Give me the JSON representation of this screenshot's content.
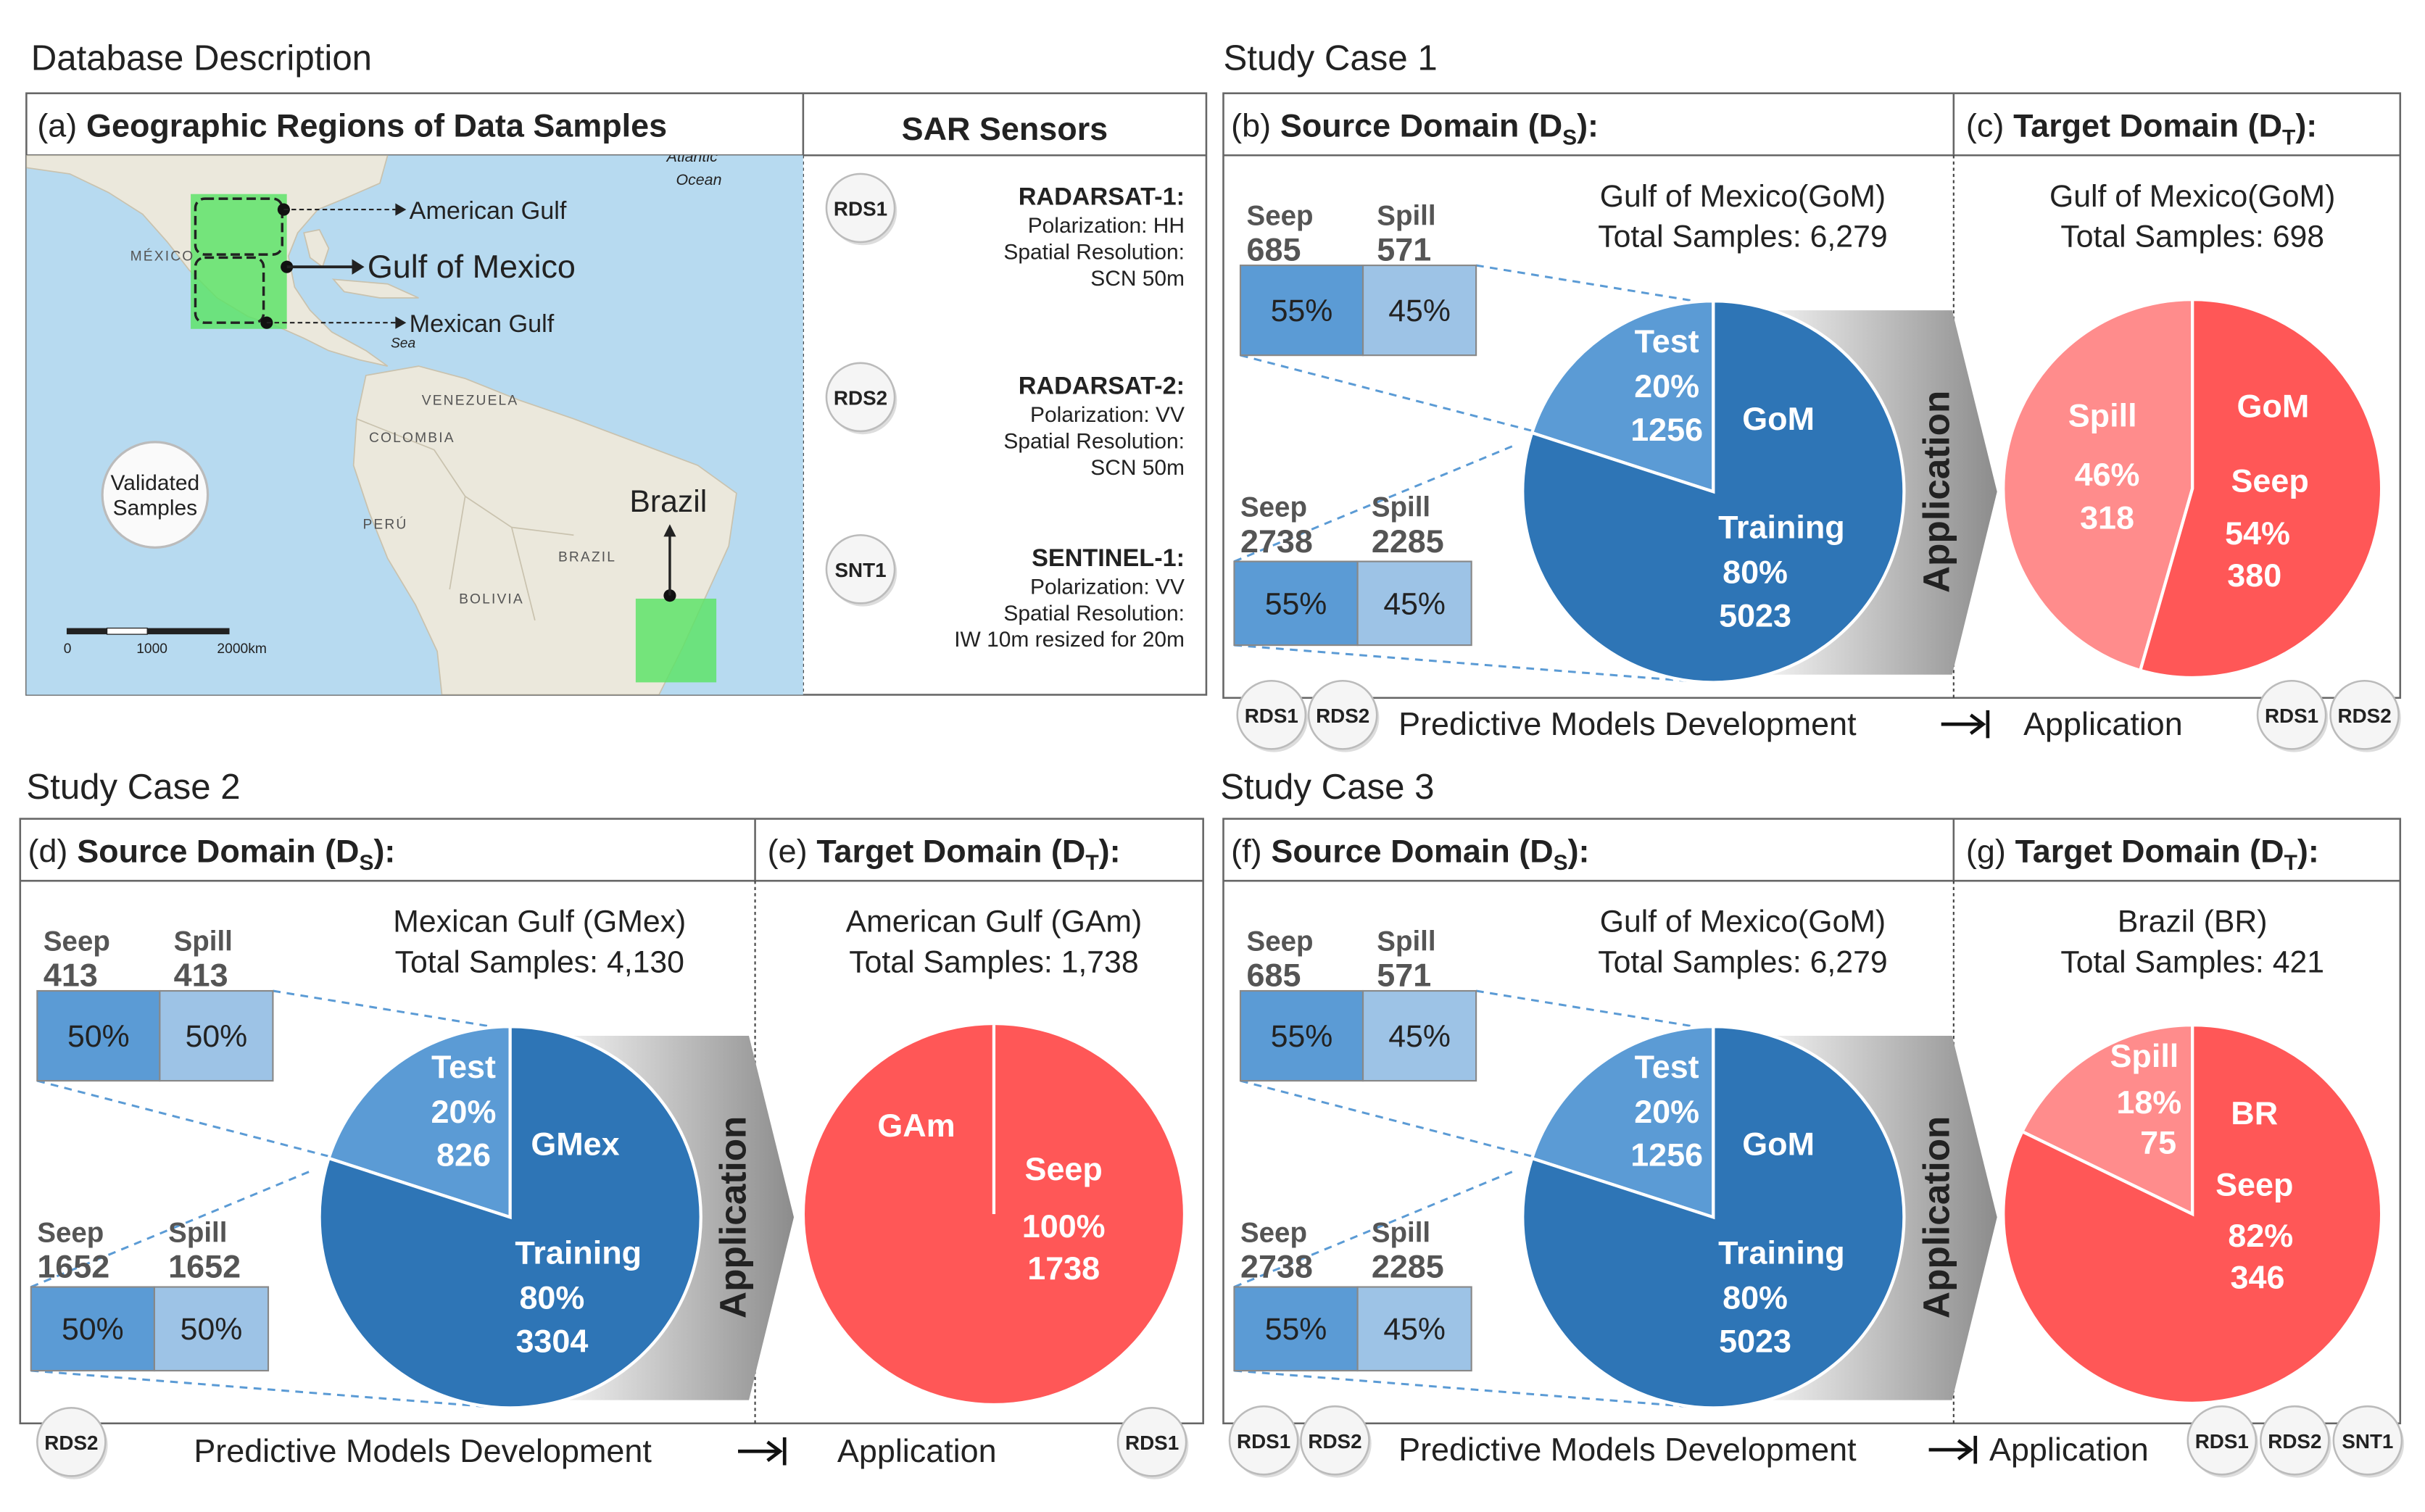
{
  "database": {
    "section": "Database Description",
    "map_panel": {
      "prefix": "(a)",
      "title": "Geographic Regions of Data Samples",
      "regions": [
        "American Gulf",
        "Gulf of Mexico",
        "Mexican Gulf",
        "Brazil"
      ],
      "badge": [
        "Validated",
        "Samples"
      ],
      "scale": [
        "0",
        "1000",
        "2000km"
      ],
      "places": [
        "MÉXICO",
        "VENEZUELA",
        "COLOMBIA",
        "PERÚ",
        "BRAZIL",
        "BOLIVIA",
        "Atlantic",
        "Ocean",
        "Sea"
      ]
    },
    "sensors": {
      "title": "SAR Sensors",
      "items": [
        {
          "badge": "RDS1",
          "name": "RADARSAT-1:",
          "lines": [
            "Polarization: HH",
            "Spatial Resolution:",
            "SCN 50m"
          ]
        },
        {
          "badge": "RDS2",
          "name": "RADARSAT-2:",
          "lines": [
            "Polarization: VV",
            "Spatial Resolution:",
            "SCN 50m"
          ]
        },
        {
          "badge": "SNT1",
          "name": "SENTINEL-1:",
          "lines": [
            "Polarization: VV",
            "Spatial Resolution:",
            "IW 10m resized for 20m"
          ]
        }
      ]
    }
  },
  "cases": [
    {
      "section": "Study Case 1",
      "source": {
        "prefix": "(b)",
        "title": "Source Domain (D",
        "sub": "S",
        "end": "):",
        "region": "Gulf of Mexico(GoM)",
        "total": "Total Samples: 6,279",
        "test_split": {
          "seep_label": "Seep",
          "seep": 685,
          "spill_label": "Spill",
          "spill": 571,
          "seep_pct": "55%",
          "spill_pct": "45%"
        },
        "train_split": {
          "seep_label": "Seep",
          "seep": 2738,
          "spill_label": "Spill",
          "spill": 2285,
          "seep_pct": "55%",
          "spill_pct": "45%"
        },
        "pie": {
          "name": "GoM",
          "slices": [
            {
              "label": "Test",
              "percent": "20%",
              "count": 1256
            },
            {
              "label": "Training",
              "percent": "80%",
              "count": 5023
            }
          ]
        },
        "arrow": "Application"
      },
      "target": {
        "prefix": "(c)",
        "title": "Target Domain (D",
        "sub": "T",
        "end": "):",
        "region": "Gulf of Mexico(GoM)",
        "total": "Total Samples: 698",
        "pie": {
          "name": "GoM",
          "slices": [
            {
              "label": "Spill",
              "percent": "46%",
              "count": 318
            },
            {
              "label": "Seep",
              "percent": "54%",
              "count": 380
            }
          ]
        }
      },
      "footer": {
        "left": [
          "RDS1",
          "RDS2"
        ],
        "development": "Predictive Models Development",
        "application": "Application",
        "right": [
          "RDS1",
          "RDS2"
        ]
      }
    },
    {
      "section": "Study Case 2",
      "source": {
        "prefix": "(d)",
        "title": "Source Domain (D",
        "sub": "S",
        "end": "):",
        "region": "Mexican Gulf (GMex)",
        "total": "Total Samples: 4,130",
        "test_split": {
          "seep_label": "Seep",
          "seep": 413,
          "spill_label": "Spill",
          "spill": 413,
          "seep_pct": "50%",
          "spill_pct": "50%"
        },
        "train_split": {
          "seep_label": "Seep",
          "seep": 1652,
          "spill_label": "Spill",
          "spill": 1652,
          "seep_pct": "50%",
          "spill_pct": "50%"
        },
        "pie": {
          "name": "GMex",
          "slices": [
            {
              "label": "Test",
              "percent": "20%",
              "count": 826
            },
            {
              "label": "Training",
              "percent": "80%",
              "count": 3304
            }
          ]
        },
        "arrow": "Application"
      },
      "target": {
        "prefix": "(e)",
        "title": "Target Domain (D",
        "sub": "T",
        "end": "):",
        "region": "American Gulf (GAm)",
        "total": "Total Samples: 1,738",
        "pie": {
          "name": "GAm",
          "slices": [
            {
              "label": "Seep",
              "percent": "100%",
              "count": 1738
            }
          ]
        }
      },
      "footer": {
        "left": [
          "RDS2"
        ],
        "development": "Predictive Models Development",
        "application": "Application",
        "right": [
          "RDS1"
        ]
      }
    },
    {
      "section": "Study Case 3",
      "source": {
        "prefix": "(f)",
        "title": "Source Domain (D",
        "sub": "S",
        "end": "):",
        "region": "Gulf of Mexico(GoM)",
        "total": "Total Samples: 6,279",
        "test_split": {
          "seep_label": "Seep",
          "seep": 685,
          "spill_label": "Spill",
          "spill": 571,
          "seep_pct": "55%",
          "spill_pct": "45%"
        },
        "train_split": {
          "seep_label": "Seep",
          "seep": 2738,
          "spill_label": "Spill",
          "spill": 2285,
          "seep_pct": "55%",
          "spill_pct": "45%"
        },
        "pie": {
          "name": "GoM",
          "slices": [
            {
              "label": "Test",
              "percent": "20%",
              "count": 1256
            },
            {
              "label": "Training",
              "percent": "80%",
              "count": 5023
            }
          ]
        },
        "arrow": "Application"
      },
      "target": {
        "prefix": "(g)",
        "title": "Target Domain (D",
        "sub": "T",
        "end": "):",
        "region": "Brazil (BR)",
        "total": "Total Samples: 421",
        "pie": {
          "name": "BR",
          "slices": [
            {
              "label": "Spill",
              "percent": "18%",
              "count": 75
            },
            {
              "label": "Seep",
              "percent": "82%",
              "count": 346
            }
          ]
        }
      },
      "footer": {
        "left": [
          "RDS1",
          "RDS2"
        ],
        "development": "Predictive Models Development",
        "application": "Application",
        "right": [
          "RDS1",
          "RDS2",
          "SNT1"
        ]
      }
    }
  ]
}
